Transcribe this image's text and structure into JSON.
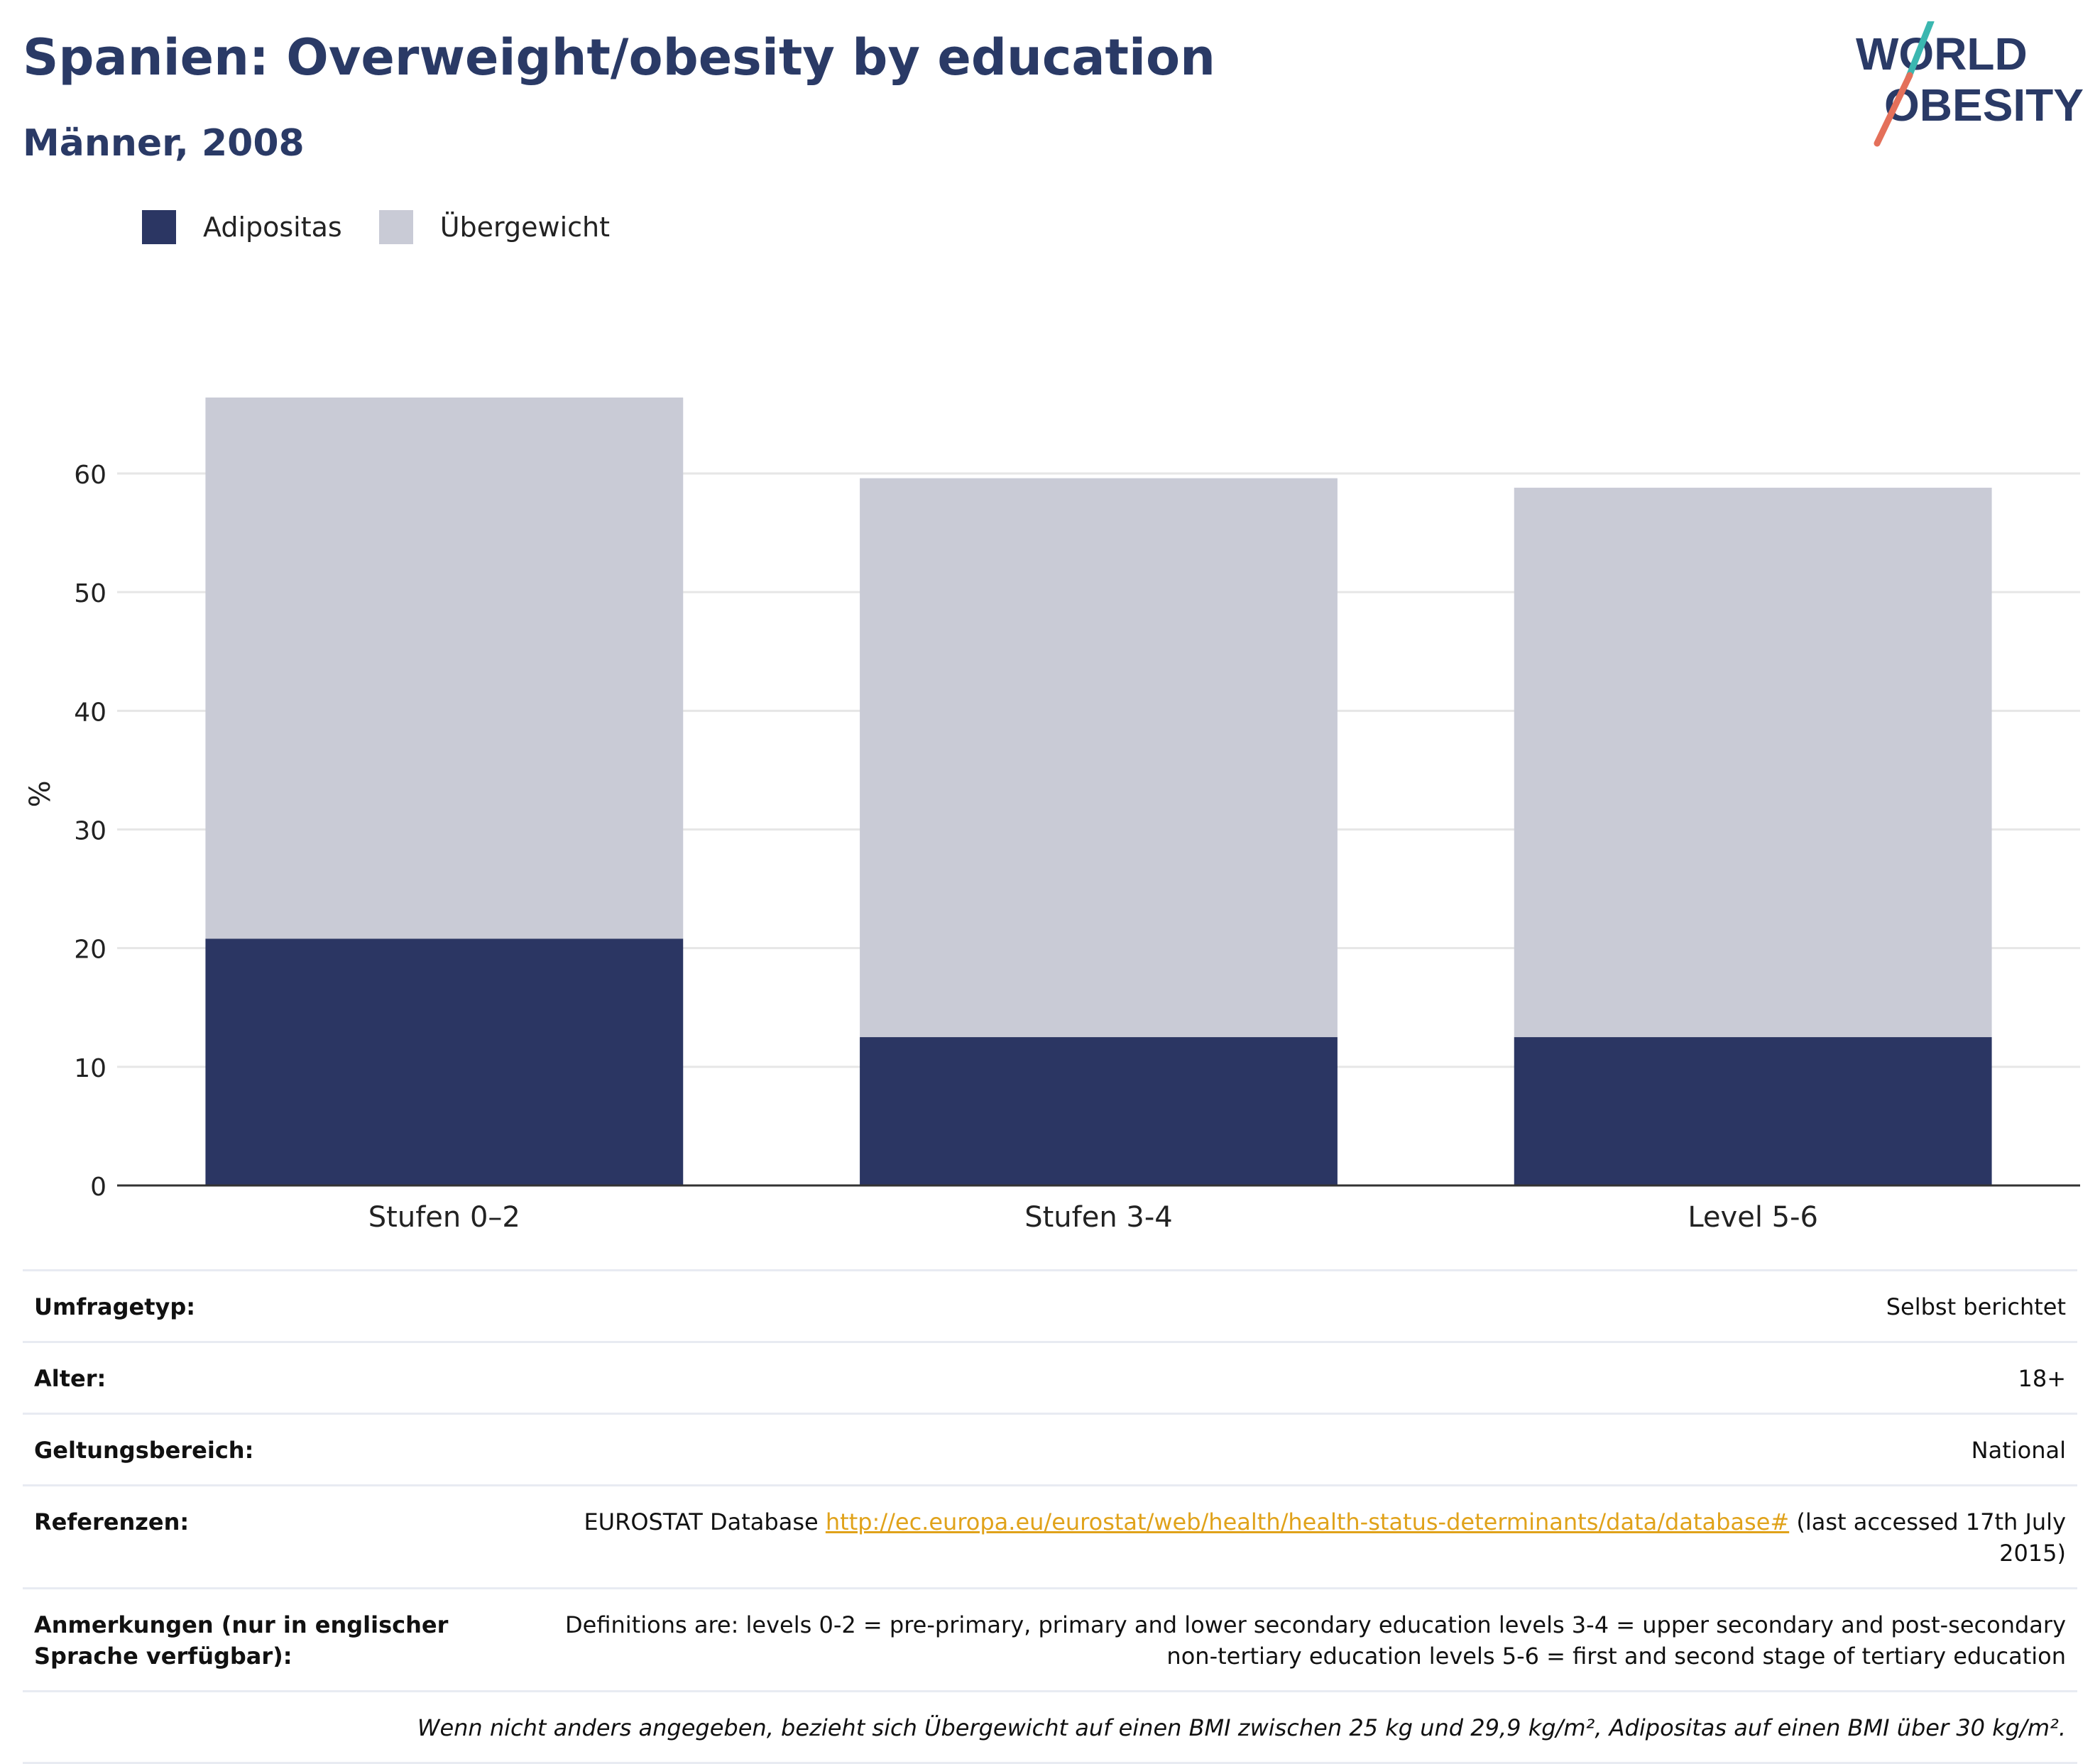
{
  "header": {
    "title": "Spanien: Overweight/obesity by education",
    "subtitle": "Männer, 2008"
  },
  "logo": {
    "line1": "WORLD",
    "line2": "OBESITY"
  },
  "colors": {
    "adipositas": "#2b3663",
    "uebergewicht": "#c9cbd6",
    "title": "#2a3a66",
    "link": "#e0a21a"
  },
  "chart_data": {
    "type": "bar",
    "stacked": true,
    "categories": [
      "Stufen 0–2",
      "Stufen 3-4",
      "Level 5-6"
    ],
    "series": [
      {
        "name": "Adipositas",
        "values": [
          20.8,
          12.5,
          12.5
        ]
      },
      {
        "name": "Übergewicht",
        "values": [
          45.6,
          47.1,
          46.3
        ]
      }
    ],
    "ylabel": "%",
    "ylim": [
      0,
      66.4
    ],
    "yticks": [
      0,
      10,
      20,
      30,
      40,
      50,
      60
    ],
    "grid": true,
    "legend": "top-left"
  },
  "meta": {
    "survey_label": "Umfragetyp:",
    "survey_value": "Selbst berichtet",
    "age_label": "Alter:",
    "age_value": "18+",
    "scope_label": "Geltungsbereich:",
    "scope_value": "National",
    "ref_label": "Referenzen:",
    "ref_prefix": "EUROSTAT Database ",
    "ref_link": "http://ec.europa.eu/eurostat/web/health/health-status-determinants/data/database#",
    "ref_suffix": " (last accessed 17th July 2015)",
    "notes_label": "Anmerkungen (nur in englischer Sprache verfügbar):",
    "notes_value": "Definitions are: levels 0-2 = pre-primary, primary and lower secondary education levels 3-4 = upper secondary and post-secondary non-tertiary education levels 5-6 = first and second stage of tertiary education",
    "footnote": "Wenn nicht anders angegeben, bezieht sich Übergewicht auf einen BMI zwischen 25 kg und 29,9 kg/m², Adipositas auf einen BMI über 30 kg/m²."
  }
}
